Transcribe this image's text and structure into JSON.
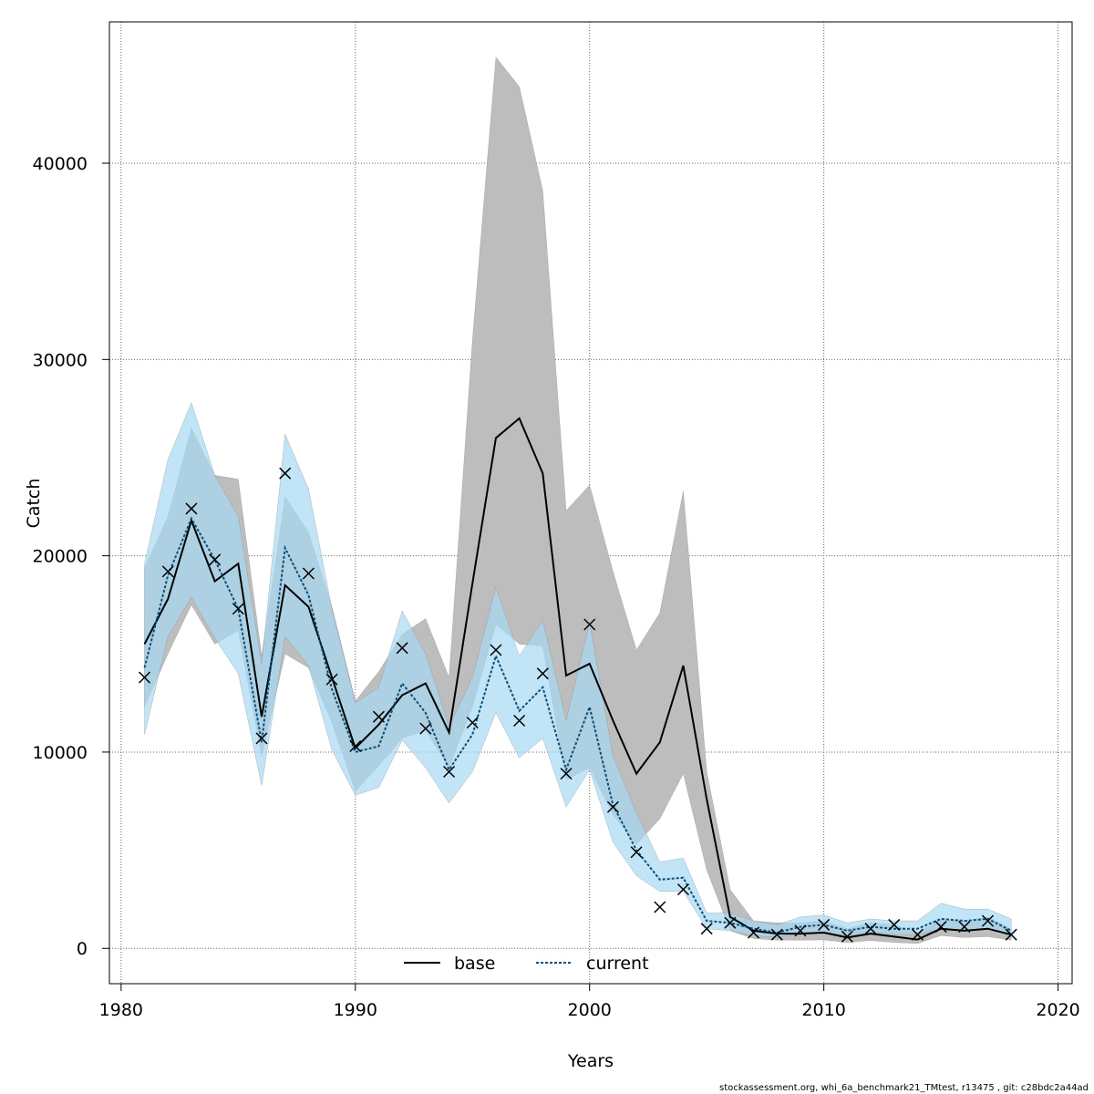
{
  "chart_data": {
    "type": "line",
    "title": "",
    "xlabel": "Years",
    "ylabel": "Catch",
    "xlim": [
      1979.5,
      2020.6
    ],
    "ylim": [
      -1800,
      47200
    ],
    "xticks": [
      1980,
      1990,
      2000,
      2010,
      2020
    ],
    "yticks": [
      0,
      10000,
      20000,
      30000,
      40000
    ],
    "grid": true,
    "legend_position": "bottom",
    "x": [
      1981,
      1982,
      1983,
      1984,
      1985,
      1986,
      1987,
      1988,
      1989,
      1990,
      1991,
      1992,
      1993,
      1994,
      1995,
      1996,
      1997,
      1998,
      1999,
      2000,
      2001,
      2002,
      2003,
      2004,
      2005,
      2006,
      2007,
      2008,
      2009,
      2010,
      2011,
      2012,
      2013,
      2014,
      2015,
      2016,
      2017,
      2018
    ],
    "series": [
      {
        "name": "base",
        "color": "#000000",
        "band_color": "#bdbdbd",
        "values": [
          15500,
          17800,
          21800,
          18700,
          19600,
          11800,
          18500,
          17400,
          13800,
          10200,
          11400,
          12900,
          13500,
          11000,
          18600,
          26000,
          27000,
          24200,
          13900,
          14500,
          11600,
          8900,
          10500,
          14400,
          7600,
          1600,
          900,
          750,
          750,
          800,
          550,
          750,
          600,
          450,
          1000,
          900,
          1000,
          700
        ],
        "lower": [
          12300,
          15000,
          17500,
          15500,
          16200,
          9800,
          15000,
          14300,
          11500,
          8000,
          9300,
          10700,
          11100,
          9200,
          12300,
          16500,
          15500,
          15400,
          8600,
          9200,
          6800,
          5300,
          6600,
          8900,
          4000,
          900,
          500,
          420,
          420,
          430,
          300,
          400,
          300,
          250,
          650,
          550,
          600,
          420
        ],
        "upper": [
          19400,
          22000,
          26500,
          24100,
          23900,
          14900,
          23000,
          21200,
          17400,
          12600,
          14100,
          16000,
          16800,
          13800,
          31000,
          45400,
          43900,
          38600,
          22300,
          23600,
          19200,
          15200,
          17100,
          23300,
          9000,
          3000,
          1400,
          1300,
          1300,
          1400,
          1000,
          1300,
          1200,
          800,
          1500,
          1400,
          1600,
          1000
        ]
      },
      {
        "name": "current",
        "color": "#0a4f7a",
        "band_color": "#a6d9f2",
        "values": [
          14300,
          19000,
          21900,
          19800,
          17300,
          10500,
          20400,
          18000,
          13200,
          10000,
          10300,
          13500,
          12000,
          9100,
          10900,
          14900,
          12100,
          13300,
          9100,
          12300,
          7300,
          5000,
          3500,
          3600,
          1400,
          1300,
          1000,
          800,
          1100,
          1200,
          900,
          1100,
          1000,
          1000,
          1500,
          1400,
          1500,
          900
        ],
        "lower": [
          10900,
          15900,
          17900,
          15800,
          14000,
          8300,
          15900,
          14400,
          10100,
          7800,
          8200,
          10600,
          9200,
          7400,
          9000,
          12000,
          9700,
          10700,
          7200,
          9100,
          5400,
          3700,
          2900,
          2900,
          1000,
          900,
          650,
          550,
          750,
          850,
          650,
          800,
          700,
          700,
          1000,
          950,
          1000,
          650
        ],
        "upper": [
          19600,
          24900,
          27800,
          24100,
          22000,
          14500,
          26200,
          23400,
          17300,
          12500,
          13300,
          17200,
          15000,
          11300,
          13800,
          18400,
          14900,
          16700,
          11600,
          16600,
          9800,
          6900,
          4400,
          4600,
          1800,
          1800,
          1400,
          1200,
          1600,
          1700,
          1300,
          1500,
          1400,
          1400,
          2300,
          2000,
          2000,
          1500
        ]
      }
    ],
    "observations": {
      "marker": "x",
      "values": [
        13800,
        19200,
        22400,
        19800,
        17300,
        10700,
        24200,
        19100,
        13700,
        10300,
        11800,
        15300,
        11200,
        9000,
        11500,
        15200,
        11600,
        14000,
        8900,
        16500,
        7200,
        4900,
        2100,
        3000,
        1000,
        1300,
        800,
        700,
        900,
        1200,
        600,
        1000,
        1200,
        700,
        1100,
        1100,
        1400,
        700
      ]
    },
    "footer": "stockassessment.org, whi_6a_benchmark21_TMtest, r13475 , git: c28bdc2a44ad"
  }
}
